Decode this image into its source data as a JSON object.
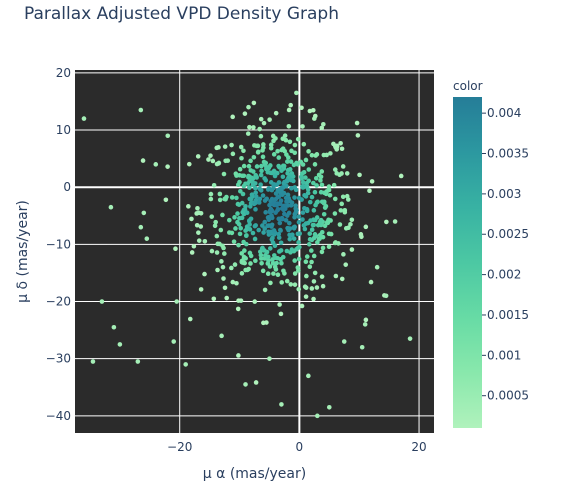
{
  "chart_data": {
    "type": "scatter",
    "title": "Parallax Adjusted VPD Density Graph",
    "xlabel": "μ α (mas/year)",
    "ylabel": "μ δ (mas/year)",
    "xlim": [
      -37.5,
      22.5
    ],
    "ylim": [
      -43,
      20.5
    ],
    "x_ticks": [
      -20,
      0,
      20
    ],
    "y_ticks": [
      20,
      10,
      0,
      -10,
      -20,
      -30,
      -40
    ],
    "grid": true,
    "plot_background": "#2b2b2b",
    "grid_color": "#ffffff",
    "colorbar": {
      "title": "color",
      "range": [
        0.0001,
        0.0042
      ],
      "ticks": [
        0.0005,
        0.001,
        0.0015,
        0.002,
        0.0025,
        0.003,
        0.0035,
        0.004
      ],
      "tick_labels": [
        "0.0005",
        "0.001",
        "0.0015",
        "0.002",
        "0.0025",
        "0.003",
        "0.0035",
        "0.004"
      ],
      "colorscale": [
        "#b0f2bc",
        "#89e8ac",
        "#67dba5",
        "#4cc8a3",
        "#38b2a3",
        "#2c98a0",
        "#257d98"
      ]
    },
    "cluster": {
      "center": [
        -3.5,
        -4
      ],
      "sd": [
        6.5,
        7.5
      ],
      "count": 650,
      "peak_density": 0.0042
    },
    "outliers": [
      {
        "x": -36,
        "y": 12,
        "c": 0.0003
      },
      {
        "x": -34.5,
        "y": -30.5,
        "c": 0.0003
      },
      {
        "x": -33,
        "y": -20,
        "c": 0.0003
      },
      {
        "x": -31.5,
        "y": -3.5,
        "c": 0.0003
      },
      {
        "x": -31,
        "y": -24.5,
        "c": 0.0003
      },
      {
        "x": -30,
        "y": -27.5,
        "c": 0.0003
      },
      {
        "x": -27,
        "y": -30.5,
        "c": 0.0003
      },
      {
        "x": -26.5,
        "y": 13.5,
        "c": 0.0003
      },
      {
        "x": -26,
        "y": -4.5,
        "c": 0.0003
      },
      {
        "x": -26.5,
        "y": -7,
        "c": 0.0003
      },
      {
        "x": -25.5,
        "y": -9,
        "c": 0.0003
      },
      {
        "x": -24,
        "y": 4,
        "c": 0.0003
      },
      {
        "x": -22,
        "y": 9,
        "c": 0.0003
      },
      {
        "x": -21,
        "y": -27,
        "c": 0.0003
      },
      {
        "x": -20.5,
        "y": -20,
        "c": 0.0003
      },
      {
        "x": -19,
        "y": -31,
        "c": 0.0003
      },
      {
        "x": -8.5,
        "y": 14,
        "c": 0.0003
      },
      {
        "x": -0.5,
        "y": 16.5,
        "c": 0.0003
      },
      {
        "x": 2.5,
        "y": 12,
        "c": 0.0003
      },
      {
        "x": 4,
        "y": 11,
        "c": 0.0003
      },
      {
        "x": 7.5,
        "y": -27,
        "c": 0.0003
      },
      {
        "x": 10.5,
        "y": -28,
        "c": 0.0003
      },
      {
        "x": 13,
        "y": -14,
        "c": 0.0003
      },
      {
        "x": 14.5,
        "y": -19,
        "c": 0.0003
      },
      {
        "x": 16,
        "y": -6,
        "c": 0.0003
      },
      {
        "x": 18.5,
        "y": -26.5,
        "c": 0.0003
      },
      {
        "x": -9,
        "y": -34.5,
        "c": 0.0003
      },
      {
        "x": -3,
        "y": -38,
        "c": 0.0003
      },
      {
        "x": 3,
        "y": -40,
        "c": 0.0003
      },
      {
        "x": 5,
        "y": -38.5,
        "c": 0.0003
      },
      {
        "x": -5,
        "y": -30,
        "c": 0.0003
      },
      {
        "x": 1.5,
        "y": -33,
        "c": 0.0003
      },
      {
        "x": 11,
        "y": -24,
        "c": 0.0003
      },
      {
        "x": -13,
        "y": -26,
        "c": 0.0003
      }
    ]
  }
}
